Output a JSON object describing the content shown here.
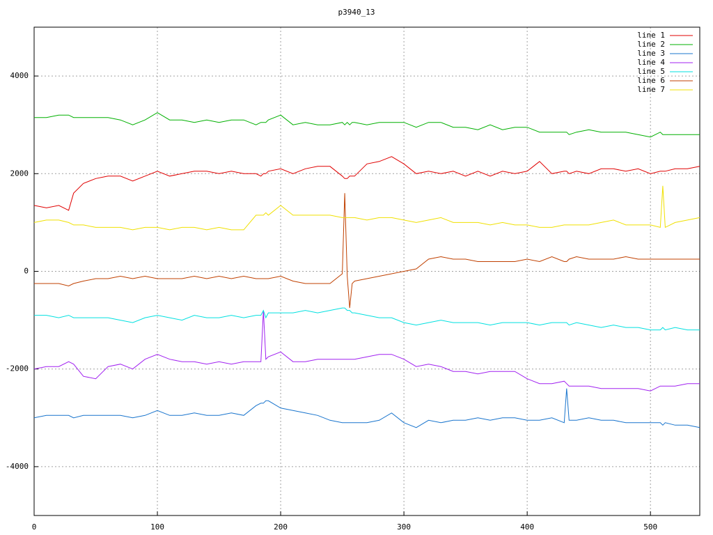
{
  "chart_data": {
    "type": "line",
    "title": "p3940_13",
    "x": [
      0,
      10,
      20,
      28,
      32,
      40,
      50,
      60,
      70,
      80,
      90,
      100,
      110,
      120,
      130,
      140,
      150,
      160,
      170,
      180,
      184,
      186,
      188,
      190,
      200,
      210,
      220,
      230,
      240,
      250,
      252,
      254,
      256,
      258,
      260,
      270,
      280,
      290,
      300,
      310,
      320,
      330,
      340,
      350,
      360,
      370,
      380,
      390,
      400,
      410,
      420,
      430,
      432,
      434,
      440,
      450,
      460,
      470,
      480,
      490,
      500,
      508,
      510,
      512,
      520,
      530,
      540
    ],
    "xlim": [
      0,
      540
    ],
    "xticks": [
      0,
      100,
      200,
      300,
      400,
      500
    ],
    "ylim": [
      -5000,
      5000
    ],
    "yticks": [
      -4000,
      -2000,
      0,
      2000,
      4000
    ],
    "grid": true,
    "legend": "top-right",
    "series": [
      {
        "name": "line 1",
        "color": "#e00000",
        "values": [
          1350,
          1300,
          1350,
          1250,
          1600,
          1800,
          1900,
          1950,
          1950,
          1850,
          1950,
          2050,
          1950,
          2000,
          2050,
          2050,
          2000,
          2050,
          2000,
          2000,
          1950,
          2000,
          2000,
          2050,
          2100,
          2000,
          2100,
          2150,
          2150,
          1950,
          1900,
          1900,
          1950,
          1950,
          1950,
          2200,
          2250,
          2350,
          2200,
          2000,
          2050,
          2000,
          2050,
          1950,
          2050,
          1950,
          2050,
          2000,
          2050,
          2250,
          2000,
          2050,
          2050,
          2000,
          2050,
          2000,
          2100,
          2100,
          2050,
          2100,
          2000,
          2050,
          2050,
          2050,
          2100,
          2100,
          2150
        ]
      },
      {
        "name": "line 2",
        "color": "#00b000",
        "values": [
          3150,
          3150,
          3200,
          3200,
          3150,
          3150,
          3150,
          3150,
          3100,
          3000,
          3100,
          3250,
          3100,
          3100,
          3050,
          3100,
          3050,
          3100,
          3100,
          3000,
          3050,
          3050,
          3050,
          3100,
          3200,
          3000,
          3050,
          3000,
          3000,
          3050,
          3000,
          3050,
          3000,
          3050,
          3050,
          3000,
          3050,
          3050,
          3050,
          2950,
          3050,
          3050,
          2950,
          2950,
          2900,
          3000,
          2900,
          2950,
          2950,
          2850,
          2850,
          2850,
          2850,
          2800,
          2850,
          2900,
          2850,
          2850,
          2850,
          2800,
          2750,
          2850,
          2800,
          2800,
          2800,
          2800,
          2800
        ]
      },
      {
        "name": "line 3",
        "color": "#1874cd",
        "values": [
          -3000,
          -2950,
          -2950,
          -2950,
          -3000,
          -2950,
          -2950,
          -2950,
          -2950,
          -3000,
          -2950,
          -2850,
          -2950,
          -2950,
          -2900,
          -2950,
          -2950,
          -2900,
          -2950,
          -2750,
          -2700,
          -2700,
          -2650,
          -2650,
          -2800,
          -2850,
          -2900,
          -2950,
          -3050,
          -3100,
          -3100,
          -3100,
          -3100,
          -3100,
          -3100,
          -3100,
          -3050,
          -2900,
          -3100,
          -3200,
          -3050,
          -3100,
          -3050,
          -3050,
          -3000,
          -3050,
          -3000,
          -3000,
          -3050,
          -3050,
          -3000,
          -3100,
          -2400,
          -3050,
          -3050,
          -3000,
          -3050,
          -3050,
          -3100,
          -3100,
          -3100,
          -3100,
          -3150,
          -3100,
          -3150,
          -3150,
          -3200
        ]
      },
      {
        "name": "line 4",
        "color": "#a020f0",
        "values": [
          -2000,
          -1950,
          -1950,
          -1850,
          -1900,
          -2150,
          -2200,
          -1950,
          -1900,
          -2000,
          -1800,
          -1700,
          -1800,
          -1850,
          -1850,
          -1900,
          -1850,
          -1900,
          -1850,
          -1850,
          -1850,
          -800,
          -1800,
          -1750,
          -1650,
          -1850,
          -1850,
          -1800,
          -1800,
          -1800,
          -1800,
          -1800,
          -1800,
          -1800,
          -1800,
          -1750,
          -1700,
          -1700,
          -1800,
          -1950,
          -1900,
          -1950,
          -2050,
          -2050,
          -2100,
          -2050,
          -2050,
          -2050,
          -2200,
          -2300,
          -2300,
          -2250,
          -2300,
          -2350,
          -2350,
          -2350,
          -2400,
          -2400,
          -2400,
          -2400,
          -2450,
          -2350,
          -2350,
          -2350,
          -2350,
          -2300,
          -2300
        ]
      },
      {
        "name": "line 5",
        "color": "#00e0e0",
        "values": [
          -900,
          -900,
          -950,
          -900,
          -950,
          -950,
          -950,
          -950,
          -1000,
          -1050,
          -950,
          -900,
          -950,
          -1000,
          -900,
          -950,
          -950,
          -900,
          -950,
          -900,
          -900,
          -800,
          -950,
          -850,
          -850,
          -850,
          -800,
          -850,
          -800,
          -750,
          -750,
          -800,
          -800,
          -850,
          -850,
          -900,
          -950,
          -950,
          -1050,
          -1100,
          -1050,
          -1000,
          -1050,
          -1050,
          -1050,
          -1100,
          -1050,
          -1050,
          -1050,
          -1100,
          -1050,
          -1050,
          -1050,
          -1100,
          -1050,
          -1100,
          -1150,
          -1100,
          -1150,
          -1150,
          -1200,
          -1200,
          -1150,
          -1200,
          -1150,
          -1200,
          -1200
        ]
      },
      {
        "name": "line 6",
        "color": "#c04000",
        "values": [
          -250,
          -250,
          -250,
          -300,
          -250,
          -200,
          -150,
          -150,
          -100,
          -150,
          -100,
          -150,
          -150,
          -150,
          -100,
          -150,
          -100,
          -150,
          -100,
          -150,
          -150,
          -150,
          -150,
          -150,
          -100,
          -200,
          -250,
          -250,
          -250,
          -50,
          1600,
          -100,
          -750,
          -250,
          -200,
          -150,
          -100,
          -50,
          0,
          50,
          250,
          300,
          250,
          250,
          200,
          200,
          200,
          200,
          250,
          200,
          300,
          200,
          200,
          250,
          300,
          250,
          250,
          250,
          300,
          250,
          250,
          250,
          250,
          250,
          250,
          250,
          250
        ]
      },
      {
        "name": "line 7",
        "color": "#f0e000",
        "values": [
          1000,
          1050,
          1050,
          1000,
          950,
          950,
          900,
          900,
          900,
          850,
          900,
          900,
          850,
          900,
          900,
          850,
          900,
          850,
          850,
          1150,
          1150,
          1150,
          1200,
          1150,
          1350,
          1150,
          1150,
          1150,
          1150,
          1100,
          1100,
          1100,
          1100,
          1100,
          1100,
          1050,
          1100,
          1100,
          1050,
          1000,
          1050,
          1100,
          1000,
          1000,
          1000,
          950,
          1000,
          950,
          950,
          900,
          900,
          950,
          950,
          950,
          950,
          950,
          1000,
          1050,
          950,
          950,
          950,
          900,
          1750,
          900,
          1000,
          1050,
          1100
        ]
      }
    ]
  }
}
